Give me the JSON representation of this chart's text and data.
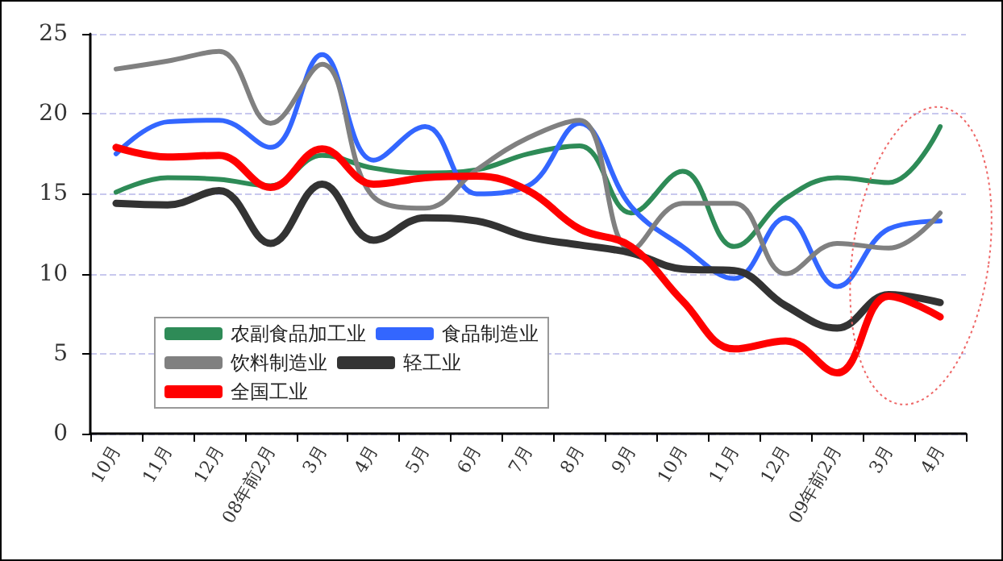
{
  "chart_data": {
    "type": "line",
    "categories": [
      "10月",
      "11月",
      "12月",
      "08年前2月",
      "3月",
      "4月",
      "5月",
      "6月",
      "7月",
      "8月",
      "9月",
      "10月",
      "11月",
      "12月",
      "09年前2月",
      "3月",
      "4月"
    ],
    "series": [
      {
        "name": "农副食品加工业",
        "color": "#2e8b57",
        "values": [
          15.1,
          16.0,
          15.9,
          15.5,
          17.4,
          16.6,
          16.3,
          16.5,
          17.5,
          18.0,
          13.8,
          16.4,
          11.7,
          14.7,
          16.0,
          15.7,
          19.2
        ]
      },
      {
        "name": "食品制造业",
        "color": "#3366ff",
        "values": [
          17.5,
          19.5,
          19.6,
          17.9,
          23.7,
          17.1,
          19.2,
          15.0,
          15.5,
          19.4,
          14.2,
          11.7,
          9.7,
          13.5,
          9.2,
          12.8,
          13.3
        ]
      },
      {
        "name": "饮料制造业",
        "color": "#808080",
        "values": [
          22.8,
          23.3,
          23.9,
          19.4,
          23.1,
          14.8,
          14.1,
          16.5,
          18.5,
          19.6,
          11.5,
          14.4,
          14.4,
          10.0,
          11.9,
          11.6,
          13.8
        ]
      },
      {
        "name": "轻工业",
        "color": "#333333",
        "values": [
          14.4,
          14.3,
          15.2,
          11.9,
          15.6,
          12.1,
          13.5,
          13.3,
          12.3,
          11.8,
          11.3,
          10.3,
          10.2,
          8.0,
          6.6,
          8.7,
          8.2
        ]
      },
      {
        "name": "全国工业",
        "color": "#ff0000",
        "values": [
          17.9,
          17.3,
          17.4,
          15.4,
          17.8,
          15.6,
          16.0,
          16.1,
          15.2,
          12.8,
          11.7,
          8.3,
          5.3,
          5.8,
          3.8,
          8.6,
          7.3
        ]
      }
    ],
    "ylim": [
      0,
      25
    ],
    "yticks": [
      0,
      5,
      10,
      15,
      20,
      25
    ],
    "grid": "y",
    "legend": "bottom left",
    "marker": "none"
  }
}
